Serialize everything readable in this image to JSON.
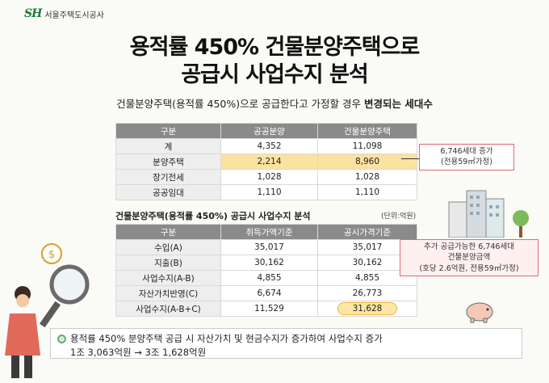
{
  "logo": {
    "mark": "SH",
    "text": "서울주택도시공사"
  },
  "title": {
    "line1": "용적률 450% 건물분양주택으로",
    "line2": "공급시 사업수지 분석"
  },
  "subtitle": {
    "prefix": "건물분양주택(용적률 450%)으로 공급한다고 가정할 경우 ",
    "bold": "변경되는 세대수"
  },
  "table1": {
    "headers": [
      "구분",
      "공공분양",
      "건물분양주택"
    ],
    "rows": [
      {
        "label": "계",
        "a": "4,352",
        "b": "11,098"
      },
      {
        "label": "분양주택",
        "a": "2,214",
        "b": "8,960"
      },
      {
        "label": "장기전세",
        "a": "1,028",
        "b": "1,028"
      },
      {
        "label": "공공임대",
        "a": "1,110",
        "b": "1,110"
      }
    ]
  },
  "callout1": {
    "line1": "6,746세대 증가",
    "line2": "(전용59㎡가정)"
  },
  "section2": {
    "title": "건물분양주택(용적률 450%) 공급시 사업수지 분석",
    "unit": "(단위:억원)"
  },
  "table2": {
    "headers": [
      "구분",
      "취득가액기준",
      "공시가격기준"
    ],
    "rows": [
      {
        "label": "수입(A)",
        "a": "35,017",
        "b": "35,017"
      },
      {
        "label": "지출(B)",
        "a": "30,162",
        "b": "30,162"
      },
      {
        "label": "사업수지(A-B)",
        "a": "4,855",
        "b": "4,855"
      },
      {
        "label": "자산가치반영(C)",
        "a": "6,674",
        "b": "26,773"
      },
      {
        "label": "사업수지(A-B+C)",
        "a": "11,529",
        "b": "31,628"
      }
    ]
  },
  "callout2": {
    "line1": "추가 공급가능한 6,746세대",
    "line2": "건물분양금액",
    "line3": "(호당 2.6억원, 전용59㎡가정)"
  },
  "note": {
    "line1": "용적률 450% 분양주택 공급 시 자산가치 및 현금수지가 증가하여 사업수지 증가",
    "line2": "1조 3,063억원 → 3조 1,628억원"
  },
  "colors": {
    "header_gray": "#8a8a8a",
    "highlight_yellow": "#fce2a0",
    "callout_red": "#e26a74",
    "note_green": "#5daf73"
  }
}
